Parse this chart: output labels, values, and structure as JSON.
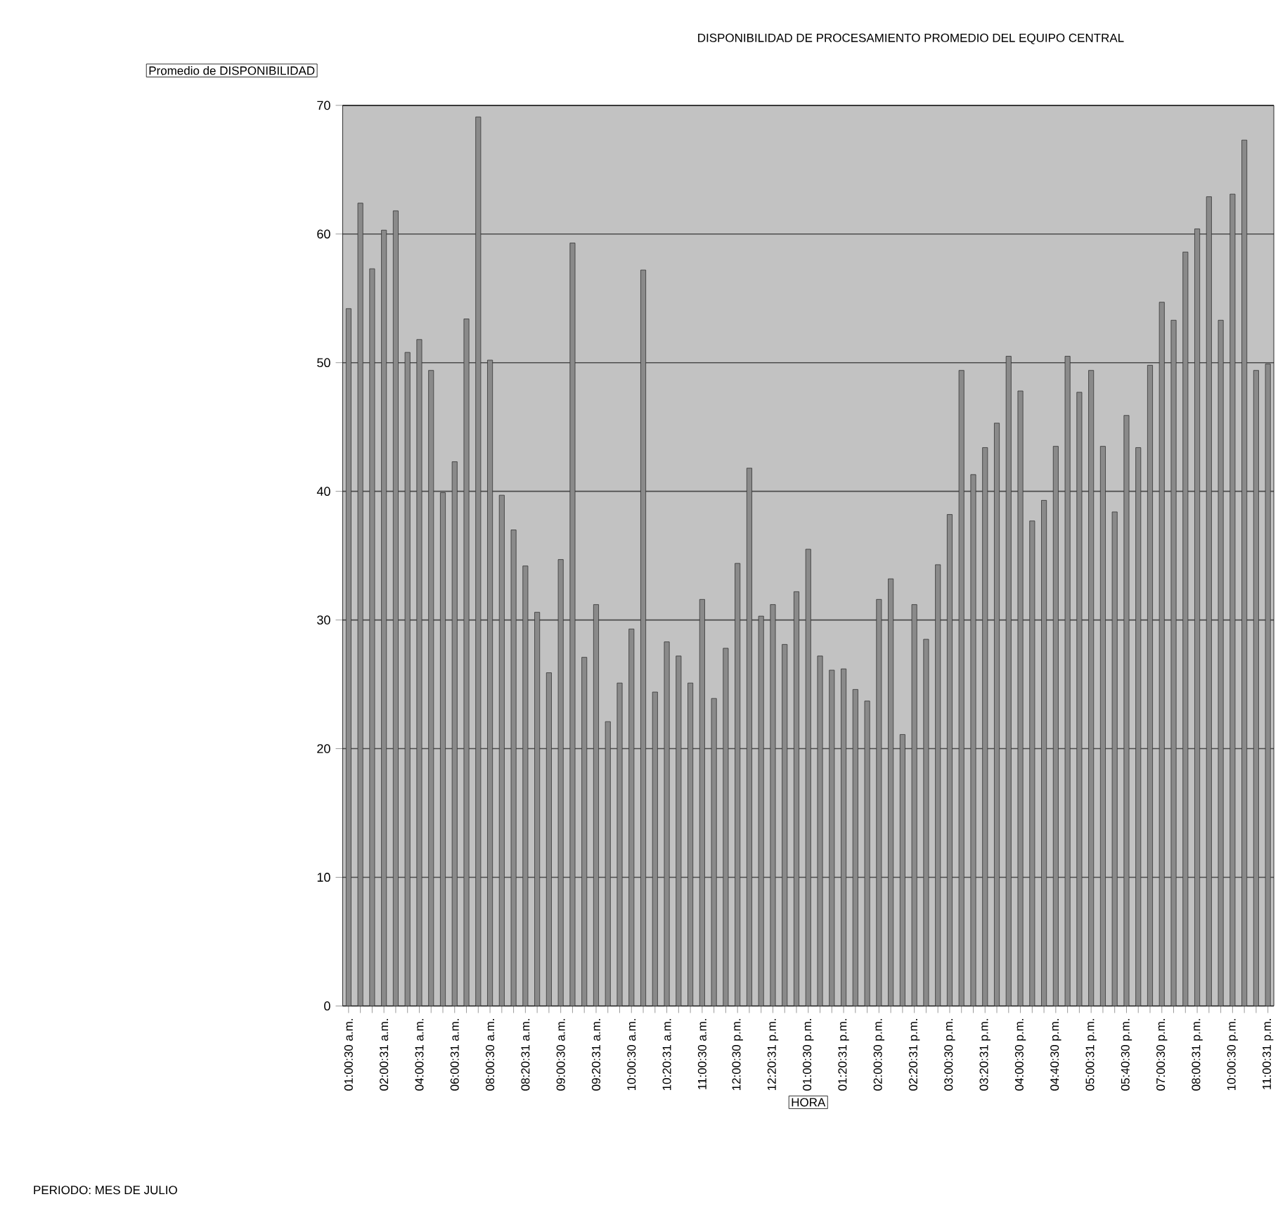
{
  "chart_data": {
    "type": "bar",
    "title": "DISPONIBILIDAD DE PROCESAMIENTO PROMEDIO DEL EQUIPO CENTRAL",
    "xlabel": "HORA",
    "ylabel": "Promedio de DISPONIBILIDAD",
    "annotations": [
      "PERIODO: MES DE JULIO"
    ],
    "categories": [
      "01:00:30 a.m.",
      null,
      null,
      "02:00:31 a.m.",
      null,
      null,
      "04:00:31 a.m.",
      null,
      null,
      "06:00:31 a.m.",
      null,
      null,
      "08:00:30 a.m.",
      null,
      null,
      "08:20:31 a.m.",
      null,
      null,
      "09:00:30 a.m.",
      null,
      null,
      "09:20:31 a.m.",
      null,
      null,
      "10:00:30 a.m.",
      null,
      null,
      "10:20:31 a.m.",
      null,
      null,
      "11:00:30 a.m.",
      null,
      null,
      "12:00:30 p.m.",
      null,
      null,
      "12:20:31 p.m.",
      null,
      null,
      "01:00:30 p.m.",
      null,
      null,
      "01:20:31 p.m.",
      null,
      null,
      "02:00:30 p.m.",
      null,
      null,
      "02:20:31 p.m.",
      null,
      null,
      "03:00:30 p.m.",
      null,
      null,
      "03:20:31 p.m.",
      null,
      null,
      "04:00:30 p.m.",
      null,
      null,
      "04:40:30 p.m.",
      null,
      null,
      "05:00:31 p.m.",
      null,
      null,
      "05:40:30 p.m.",
      null,
      null,
      "07:00:30 p.m.",
      null,
      null,
      "08:00:31 p.m.",
      null,
      null,
      "10:00:30 p.m.",
      null,
      null,
      "11:00:31 p.m."
    ],
    "values": [
      54.2,
      62.4,
      57.3,
      60.3,
      61.8,
      50.8,
      51.8,
      49.4,
      39.9,
      42.3,
      53.4,
      69.1,
      50.2,
      39.7,
      37.0,
      34.2,
      30.6,
      25.9,
      34.7,
      59.3,
      27.1,
      31.2,
      22.1,
      25.1,
      29.3,
      57.2,
      24.4,
      28.3,
      27.2,
      25.1,
      31.6,
      23.9,
      27.8,
      34.4,
      41.8,
      30.3,
      31.2,
      28.1,
      32.2,
      35.5,
      27.2,
      26.1,
      26.2,
      24.6,
      23.7,
      31.6,
      33.2,
      21.1,
      31.2,
      28.5,
      34.3,
      38.2,
      49.4,
      41.3,
      43.4,
      45.3,
      50.5,
      47.8,
      37.7,
      39.3,
      43.5,
      50.5,
      47.7,
      49.4,
      43.5,
      38.4,
      45.9,
      43.4,
      49.8,
      54.7,
      53.3,
      58.6,
      60.4,
      62.9,
      53.3,
      63.1,
      67.3,
      49.4,
      49.9
    ],
    "color": "#8a8a8a",
    "ylim": [
      0,
      70
    ],
    "yticks": [
      0,
      10,
      20,
      30,
      40,
      50,
      60,
      70
    ],
    "grid": "y"
  }
}
